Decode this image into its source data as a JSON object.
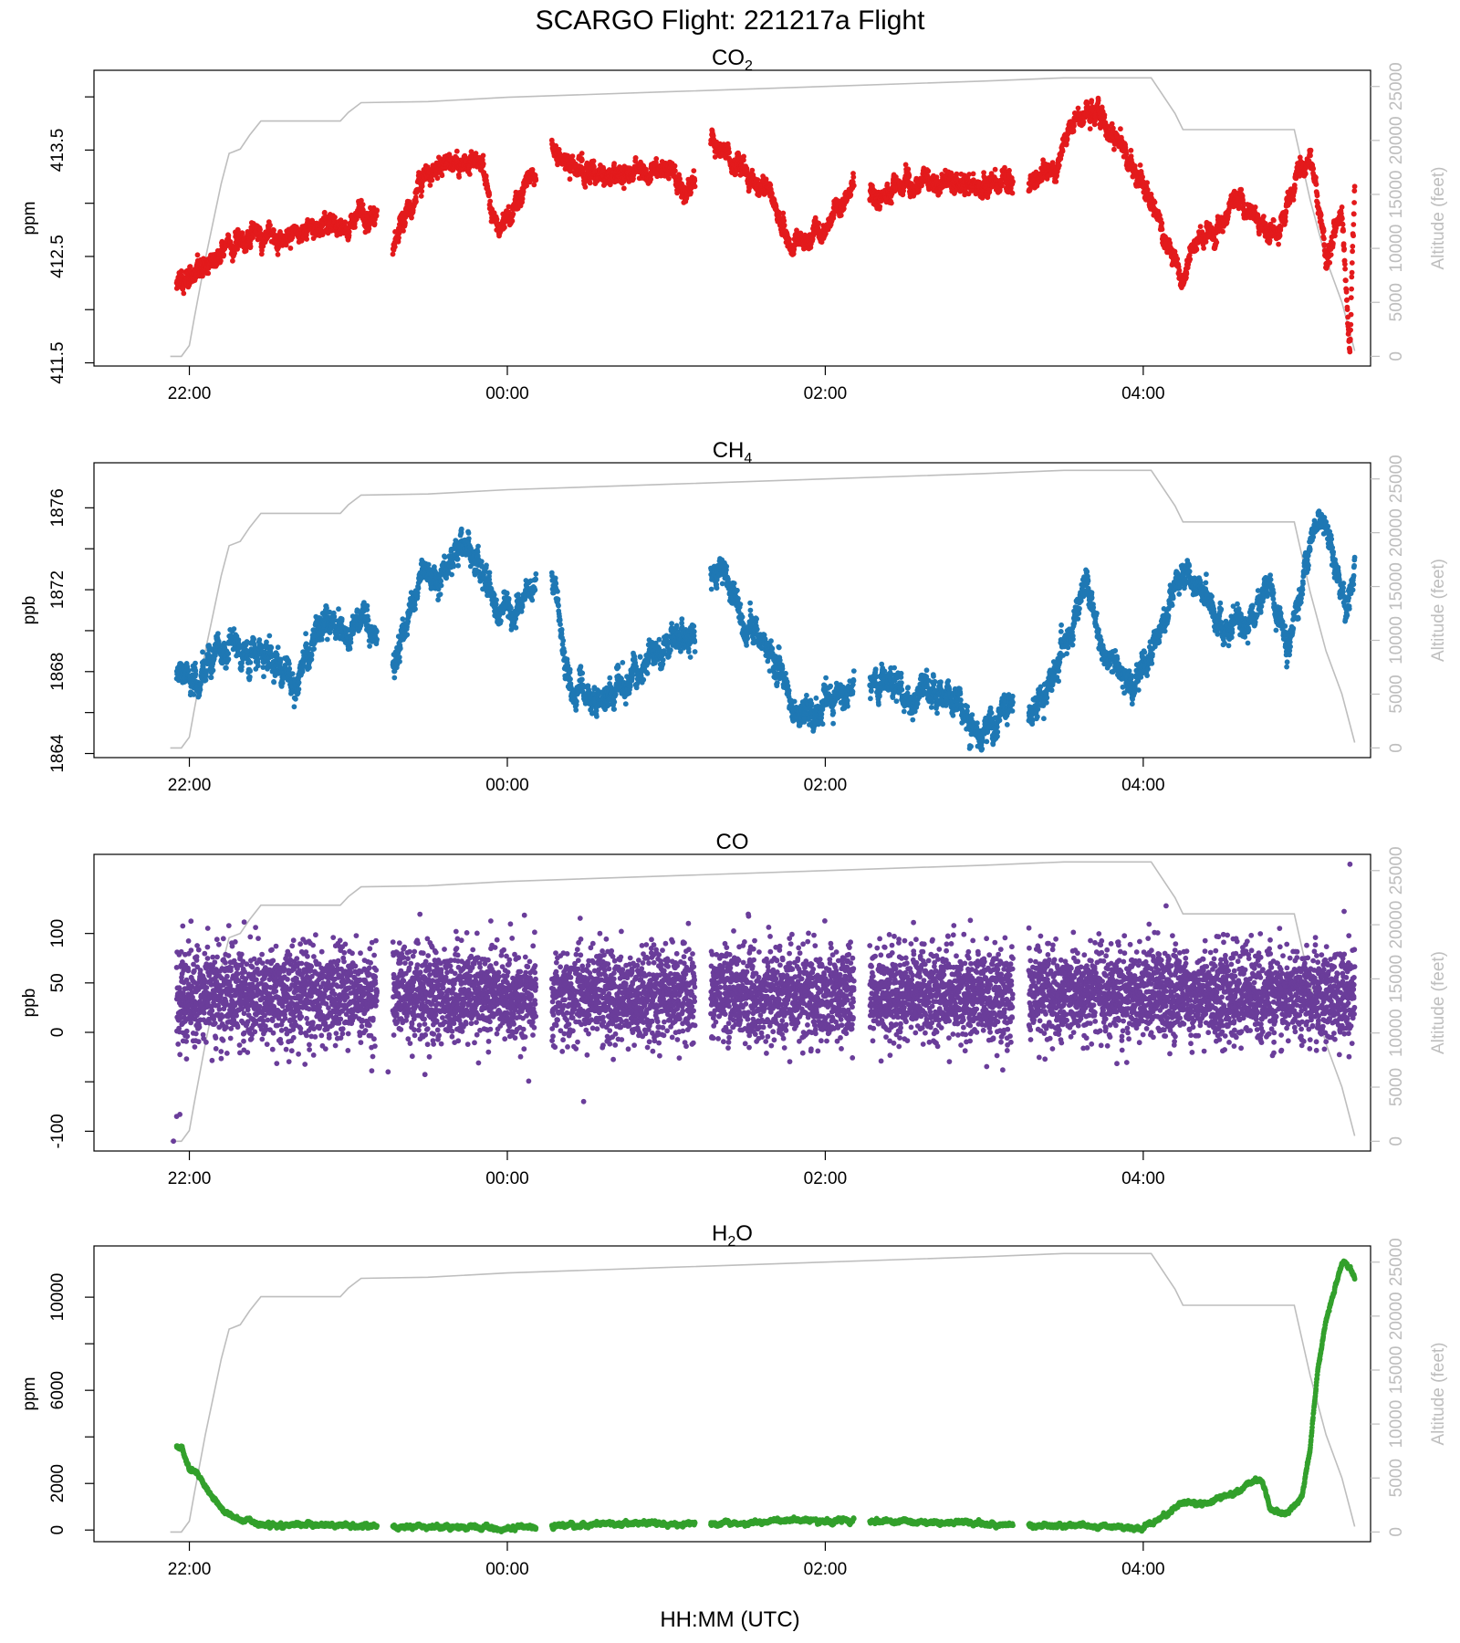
{
  "figure": {
    "title": "SCARGO Flight: 221217a  Flight",
    "xlabel": "HH:MM (UTC)"
  },
  "colors": {
    "co2": "#e31a1c",
    "ch4": "#1f78b4",
    "co": "#6a3d9a",
    "h2o": "#33a02c",
    "altitude": "#bebebe",
    "axis": "#000000"
  },
  "chart_data": [
    {
      "id": "co2",
      "type": "scatter",
      "title": "CO₂",
      "title_base": "CO",
      "title_sub": "2",
      "title_tail": "",
      "ylabel": "ppm",
      "ylim": [
        411.47,
        414.25
      ],
      "yticks": [
        411.5,
        412.0,
        412.5,
        413.0,
        413.5,
        414.0
      ],
      "ytick_labels": [
        "411.5",
        "",
        "412.5",
        "",
        "413.5",
        ""
      ],
      "xlim": [
        -0.6,
        7.43
      ],
      "xticks": [
        0,
        2,
        4,
        6
      ],
      "xtick_labels": [
        "22:00",
        "00:00",
        "02:00",
        "04:00"
      ],
      "alt_label": "Altitude (feet)",
      "alt_ticks": [
        0,
        5000,
        10000,
        15000,
        20000,
        25000
      ],
      "alt_tick_labels": [
        "0",
        "5000",
        "10000",
        "15000",
        "20000",
        "25000"
      ],
      "alt_lim": [
        -900,
        26500
      ],
      "segments": [
        [
          -0.08,
          1.18
        ],
        [
          1.28,
          2.18
        ],
        [
          2.28,
          3.18
        ],
        [
          3.28,
          4.18
        ],
        [
          4.28,
          5.18
        ],
        [
          5.28,
          6.18
        ],
        [
          6.18,
          7.33
        ]
      ],
      "anchors": [
        [
          -0.12,
          412.3
        ],
        [
          0.05,
          412.3
        ],
        [
          0.3,
          412.65
        ],
        [
          0.6,
          412.7
        ],
        [
          0.9,
          412.8
        ],
        [
          1.15,
          412.85
        ],
        [
          1.28,
          412.55
        ],
        [
          1.45,
          413.2
        ],
        [
          1.7,
          413.4
        ],
        [
          1.85,
          413.3
        ],
        [
          1.95,
          412.8
        ],
        [
          2.1,
          413.1
        ],
        [
          2.18,
          413.3
        ],
        [
          2.28,
          413.55
        ],
        [
          2.5,
          413.2
        ],
        [
          2.7,
          413.3
        ],
        [
          3.0,
          413.3
        ],
        [
          3.18,
          413.15
        ],
        [
          3.28,
          413.6
        ],
        [
          3.5,
          413.3
        ],
        [
          3.65,
          413.0
        ],
        [
          3.8,
          412.55
        ],
        [
          3.95,
          412.75
        ],
        [
          4.1,
          412.95
        ],
        [
          4.18,
          413.15
        ],
        [
          4.28,
          413.1
        ],
        [
          4.5,
          413.15
        ],
        [
          4.8,
          413.2
        ],
        [
          5.0,
          413.2
        ],
        [
          5.18,
          413.25
        ],
        [
          5.28,
          413.2
        ],
        [
          5.45,
          413.3
        ],
        [
          5.55,
          413.75
        ],
        [
          5.7,
          413.95
        ],
        [
          5.8,
          413.7
        ],
        [
          5.95,
          413.3
        ],
        [
          6.05,
          413.0
        ],
        [
          6.15,
          412.6
        ],
        [
          6.25,
          412.3
        ],
        [
          6.35,
          412.65
        ],
        [
          6.5,
          412.8
        ],
        [
          6.6,
          413.1
        ],
        [
          6.7,
          412.9
        ],
        [
          6.8,
          412.65
        ],
        [
          6.9,
          413.0
        ],
        [
          7.0,
          413.3
        ],
        [
          7.05,
          413.5
        ],
        [
          7.15,
          412.6
        ],
        [
          7.25,
          412.9
        ],
        [
          7.3,
          411.6
        ],
        [
          7.33,
          413.3
        ]
      ],
      "noise": 0.06,
      "n_per_hour": 700,
      "point_radius": 2.9,
      "seed": 11
    },
    {
      "id": "ch4",
      "type": "scatter",
      "title": "CH₄",
      "title_base": "CH",
      "title_sub": "4",
      "title_tail": "",
      "ylabel": "ppb",
      "ylim": [
        1863.8,
        1878.2
      ],
      "yticks": [
        1864,
        1866,
        1868,
        1870,
        1872,
        1874,
        1876
      ],
      "ytick_labels": [
        "1864",
        "",
        "1868",
        "",
        "1872",
        "",
        "1876"
      ],
      "xlim": [
        -0.6,
        7.43
      ],
      "xticks": [
        0,
        2,
        4,
        6
      ],
      "xtick_labels": [
        "22:00",
        "00:00",
        "02:00",
        "04:00"
      ],
      "alt_label": "Altitude (feet)",
      "alt_ticks": [
        0,
        5000,
        10000,
        15000,
        20000,
        25000
      ],
      "alt_tick_labels": [
        "0",
        "5000",
        "10000",
        "15000",
        "20000",
        "25000"
      ],
      "alt_lim": [
        -900,
        26500
      ],
      "segments": [
        [
          -0.08,
          1.18
        ],
        [
          1.28,
          2.18
        ],
        [
          2.28,
          3.18
        ],
        [
          3.28,
          4.18
        ],
        [
          4.28,
          5.18
        ],
        [
          5.28,
          6.18
        ],
        [
          6.18,
          7.33
        ]
      ],
      "anchors": [
        [
          -0.12,
          1867.3
        ],
        [
          0.05,
          1867.8
        ],
        [
          0.25,
          1869.0
        ],
        [
          0.45,
          1868.6
        ],
        [
          0.6,
          1867.5
        ],
        [
          0.7,
          1868.0
        ],
        [
          0.8,
          1870.0
        ],
        [
          1.0,
          1869.8
        ],
        [
          1.15,
          1870.3
        ],
        [
          1.28,
          1868.6
        ],
        [
          1.45,
          1872.0
        ],
        [
          1.6,
          1873.2
        ],
        [
          1.75,
          1874.1
        ],
        [
          1.85,
          1873.0
        ],
        [
          1.95,
          1870.5
        ],
        [
          2.05,
          1871.0
        ],
        [
          2.18,
          1872.5
        ],
        [
          2.28,
          1872.5
        ],
        [
          2.4,
          1867.5
        ],
        [
          2.55,
          1866.5
        ],
        [
          2.7,
          1867.5
        ],
        [
          2.85,
          1868.0
        ],
        [
          3.0,
          1869.0
        ],
        [
          3.18,
          1869.8
        ],
        [
          3.28,
          1872.5
        ],
        [
          3.35,
          1873.0
        ],
        [
          3.5,
          1870.5
        ],
        [
          3.65,
          1869.0
        ],
        [
          3.8,
          1866.0
        ],
        [
          4.0,
          1866.5
        ],
        [
          4.15,
          1867.5
        ],
        [
          4.28,
          1867.5
        ],
        [
          4.5,
          1867.0
        ],
        [
          4.7,
          1867.0
        ],
        [
          4.9,
          1865.5
        ],
        [
          5.05,
          1865.0
        ],
        [
          5.18,
          1866.5
        ],
        [
          5.28,
          1866.0
        ],
        [
          5.4,
          1866.5
        ],
        [
          5.5,
          1869.0
        ],
        [
          5.65,
          1872.5
        ],
        [
          5.75,
          1868.5
        ],
        [
          5.85,
          1868.0
        ],
        [
          5.95,
          1867.5
        ],
        [
          6.05,
          1869.0
        ],
        [
          6.15,
          1871.0
        ],
        [
          6.25,
          1873.0
        ],
        [
          6.4,
          1871.5
        ],
        [
          6.5,
          1870.0
        ],
        [
          6.65,
          1870.5
        ],
        [
          6.8,
          1872.5
        ],
        [
          6.9,
          1869.0
        ],
        [
          7.0,
          1872.5
        ],
        [
          7.1,
          1875.5
        ],
        [
          7.2,
          1873.0
        ],
        [
          7.28,
          1871.0
        ],
        [
          7.33,
          1873.0
        ]
      ],
      "noise": 0.45,
      "n_per_hour": 700,
      "point_radius": 2.9,
      "seed": 23
    },
    {
      "id": "co",
      "type": "scatter",
      "title": "CO",
      "title_base": "CO",
      "title_sub": "",
      "title_tail": "",
      "ylabel": "ppb",
      "ylim": [
        -120,
        180
      ],
      "yticks": [
        -100,
        -50,
        0,
        50,
        100
      ],
      "ytick_labels": [
        "-100",
        "",
        "0",
        "50",
        "100"
      ],
      "xlim": [
        -0.6,
        7.43
      ],
      "xticks": [
        0,
        2,
        4,
        6
      ],
      "xtick_labels": [
        "22:00",
        "00:00",
        "02:00",
        "04:00"
      ],
      "alt_label": "Altitude (feet)",
      "alt_ticks": [
        0,
        5000,
        10000,
        15000,
        20000,
        25000
      ],
      "alt_tick_labels": [
        "0",
        "5000",
        "10000",
        "15000",
        "20000",
        "25000"
      ],
      "alt_lim": [
        -900,
        26500
      ],
      "segments": [
        [
          -0.08,
          1.18
        ],
        [
          1.28,
          2.18
        ],
        [
          2.28,
          3.18
        ],
        [
          3.28,
          4.18
        ],
        [
          4.28,
          5.18
        ],
        [
          5.28,
          6.18
        ],
        [
          6.18,
          7.33
        ]
      ],
      "anchors": [
        [
          -0.12,
          38
        ],
        [
          7.33,
          38
        ]
      ],
      "noise": 24,
      "n_per_hour": 1100,
      "point_radius": 2.9,
      "seed": 37,
      "extra_points": [
        [
          -0.1,
          -110
        ],
        [
          -0.08,
          -85
        ],
        [
          -0.06,
          -83
        ],
        [
          2.48,
          -70
        ],
        [
          7.3,
          170
        ],
        [
          1.25,
          -40
        ]
      ]
    },
    {
      "id": "h2o",
      "type": "scatter",
      "title": "H₂O",
      "title_base": "H",
      "title_sub": "2",
      "title_tail": "O",
      "ylabel": "ppm",
      "ylim": [
        -500,
        12200
      ],
      "yticks": [
        0,
        2000,
        4000,
        6000,
        8000,
        10000
      ],
      "ytick_labels": [
        "0",
        "2000",
        "",
        "6000",
        "",
        "10000"
      ],
      "xlim": [
        -0.6,
        7.43
      ],
      "xticks": [
        0,
        2,
        4,
        6
      ],
      "xtick_labels": [
        "22:00",
        "00:00",
        "02:00",
        "04:00"
      ],
      "alt_label": "Altitude (feet)",
      "alt_ticks": [
        0,
        5000,
        10000,
        15000,
        20000,
        25000
      ],
      "alt_tick_labels": [
        "0",
        "5000",
        "10000",
        "15000",
        "20000",
        "25000"
      ],
      "alt_lim": [
        -900,
        26500
      ],
      "segments": [
        [
          -0.08,
          1.18
        ],
        [
          1.28,
          2.18
        ],
        [
          2.28,
          3.18
        ],
        [
          3.28,
          4.18
        ],
        [
          4.28,
          5.18
        ],
        [
          5.28,
          6.18
        ],
        [
          6.18,
          7.33
        ]
      ],
      "anchors": [
        [
          -0.12,
          3600
        ],
        [
          -0.05,
          3500
        ],
        [
          0.0,
          2600
        ],
        [
          0.05,
          2400
        ],
        [
          0.1,
          1800
        ],
        [
          0.2,
          900
        ],
        [
          0.3,
          450
        ],
        [
          0.5,
          250
        ],
        [
          1.0,
          180
        ],
        [
          1.5,
          120
        ],
        [
          2.0,
          80
        ],
        [
          2.3,
          180
        ],
        [
          2.8,
          280
        ],
        [
          3.2,
          240
        ],
        [
          3.5,
          280
        ],
        [
          3.8,
          450
        ],
        [
          4.0,
          380
        ],
        [
          4.3,
          380
        ],
        [
          4.6,
          350
        ],
        [
          5.0,
          250
        ],
        [
          5.5,
          180
        ],
        [
          5.9,
          120
        ],
        [
          6.0,
          100
        ],
        [
          6.1,
          500
        ],
        [
          6.25,
          1200
        ],
        [
          6.4,
          1100
        ],
        [
          6.6,
          1700
        ],
        [
          6.68,
          2100
        ],
        [
          6.75,
          2050
        ],
        [
          6.8,
          900
        ],
        [
          6.9,
          700
        ],
        [
          7.0,
          1400
        ],
        [
          7.05,
          3500
        ],
        [
          7.1,
          7000
        ],
        [
          7.15,
          9000
        ],
        [
          7.2,
          10200
        ],
        [
          7.25,
          11500
        ],
        [
          7.28,
          11400
        ],
        [
          7.33,
          10800
        ]
      ],
      "noise": 55,
      "n_per_hour": 700,
      "point_radius": 2.9,
      "seed": 51
    }
  ],
  "altitude": {
    "points": [
      [
        -0.12,
        0
      ],
      [
        -0.05,
        0
      ],
      [
        0.0,
        1000
      ],
      [
        0.03,
        3500
      ],
      [
        0.1,
        9000
      ],
      [
        0.2,
        16000
      ],
      [
        0.25,
        18800
      ],
      [
        0.32,
        19200
      ],
      [
        0.38,
        20500
      ],
      [
        0.45,
        21800
      ],
      [
        0.95,
        21800
      ],
      [
        1.0,
        22600
      ],
      [
        1.08,
        23500
      ],
      [
        1.5,
        23600
      ],
      [
        2.0,
        24000
      ],
      [
        3.0,
        24500
      ],
      [
        4.0,
        25000
      ],
      [
        5.0,
        25500
      ],
      [
        5.5,
        25800
      ],
      [
        6.05,
        25800
      ],
      [
        6.2,
        22500
      ],
      [
        6.25,
        21000
      ],
      [
        6.95,
        21000
      ],
      [
        7.05,
        14500
      ],
      [
        7.15,
        9000
      ],
      [
        7.25,
        5000
      ],
      [
        7.33,
        500
      ]
    ]
  }
}
